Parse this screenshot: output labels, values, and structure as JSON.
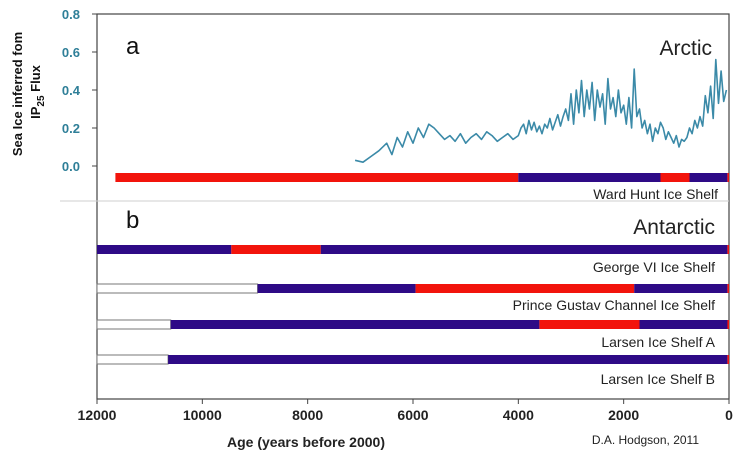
{
  "chart_data": {
    "type": "timeline",
    "x_axis": {
      "label": "Age (years before 2000)",
      "range": [
        12000,
        0
      ],
      "reversed": true,
      "ticks": [
        12000,
        10000,
        8000,
        6000,
        4000,
        2000,
        0
      ],
      "tick_labels": [
        "12000",
        "10000",
        "8000",
        "6000",
        "4000",
        "2000",
        "0"
      ]
    },
    "panels": {
      "a": {
        "letter": "a",
        "region": "Arctic",
        "y_axis": {
          "label_line1": "Sea Ice inferred fom",
          "label_line2_prefix": "IP",
          "label_line2_sub": "25",
          "label_line2_suffix": " Flux",
          "range": [
            -0.05,
            0.8
          ],
          "ticks": [
            0.0,
            0.2,
            0.4,
            0.6,
            0.8
          ],
          "tick_labels": [
            "0.0",
            "0.2",
            "0.4",
            "0.6",
            "0.8"
          ]
        },
        "series": [
          {
            "type": "line",
            "color": "#3b8aa8",
            "x": [
              7100,
              6950,
              6800,
              6650,
              6500,
              6400,
              6300,
              6200,
              6100,
              6000,
              5900,
              5800,
              5700,
              5600,
              5500,
              5400,
              5300,
              5200,
              5100,
              5000,
              4900,
              4800,
              4700,
              4600,
              4500,
              4400,
              4300,
              4200,
              4100,
              4000,
              3950,
              3900,
              3850,
              3800,
              3750,
              3700,
              3650,
              3600,
              3550,
              3500,
              3450,
              3400,
              3350,
              3300,
              3250,
              3200,
              3150,
              3100,
              3050,
              3000,
              2950,
              2900,
              2850,
              2800,
              2750,
              2700,
              2650,
              2600,
              2550,
              2500,
              2450,
              2400,
              2350,
              2300,
              2250,
              2200,
              2150,
              2100,
              2050,
              2000,
              1950,
              1900,
              1850,
              1800,
              1750,
              1700,
              1650,
              1600,
              1550,
              1500,
              1450,
              1400,
              1350,
              1300,
              1250,
              1200,
              1150,
              1100,
              1050,
              1000,
              950,
              900,
              850,
              800,
              750,
              700,
              650,
              600,
              550,
              500,
              450,
              400,
              350,
              300,
              250,
              200,
              150,
              100,
              50
            ],
            "y": [
              0.03,
              0.02,
              0.05,
              0.08,
              0.12,
              0.06,
              0.15,
              0.1,
              0.18,
              0.12,
              0.2,
              0.15,
              0.22,
              0.2,
              0.17,
              0.14,
              0.16,
              0.13,
              0.17,
              0.12,
              0.15,
              0.17,
              0.14,
              0.18,
              0.16,
              0.13,
              0.15,
              0.17,
              0.14,
              0.16,
              0.2,
              0.22,
              0.17,
              0.24,
              0.19,
              0.23,
              0.18,
              0.21,
              0.17,
              0.22,
              0.2,
              0.25,
              0.19,
              0.23,
              0.27,
              0.21,
              0.26,
              0.3,
              0.24,
              0.38,
              0.22,
              0.4,
              0.28,
              0.45,
              0.26,
              0.4,
              0.3,
              0.44,
              0.24,
              0.4,
              0.31,
              0.38,
              0.22,
              0.46,
              0.3,
              0.36,
              0.26,
              0.4,
              0.28,
              0.32,
              0.22,
              0.36,
              0.2,
              0.51,
              0.26,
              0.3,
              0.2,
              0.24,
              0.17,
              0.22,
              0.13,
              0.2,
              0.17,
              0.23,
              0.2,
              0.14,
              0.18,
              0.15,
              0.12,
              0.16,
              0.1,
              0.14,
              0.13,
              0.15,
              0.2,
              0.17,
              0.24,
              0.2,
              0.26,
              0.21,
              0.37,
              0.28,
              0.42,
              0.25,
              0.56,
              0.33,
              0.5,
              0.34,
              0.4
            ]
          }
        ],
        "shelves": [
          {
            "name": "Ward Hunt Ice Shelf",
            "segments": [
              {
                "from": 11650,
                "to": 4000,
                "state": "open"
              },
              {
                "from": 4000,
                "to": 1300,
                "state": "present"
              },
              {
                "from": 1300,
                "to": 750,
                "state": "open"
              },
              {
                "from": 750,
                "to": 30,
                "state": "present"
              },
              {
                "from": 30,
                "to": 0,
                "state": "open"
              }
            ]
          }
        ]
      },
      "b": {
        "letter": "b",
        "region": "Antarctic",
        "shelves": [
          {
            "name": "George VI Ice Shelf",
            "segments": [
              {
                "from": 12000,
                "to": 9450,
                "state": "present"
              },
              {
                "from": 9450,
                "to": 7750,
                "state": "open"
              },
              {
                "from": 7750,
                "to": 30,
                "state": "present"
              },
              {
                "from": 30,
                "to": 0,
                "state": "open"
              }
            ]
          },
          {
            "name": "Prince Gustav Channel Ice Shelf",
            "segments": [
              {
                "from": 12000,
                "to": 8950,
                "state": "unknown"
              },
              {
                "from": 8950,
                "to": 5950,
                "state": "present"
              },
              {
                "from": 5950,
                "to": 1800,
                "state": "open"
              },
              {
                "from": 1800,
                "to": 30,
                "state": "present"
              },
              {
                "from": 30,
                "to": 0,
                "state": "open"
              }
            ]
          },
          {
            "name": "Larsen Ice Shelf A",
            "segments": [
              {
                "from": 12000,
                "to": 10600,
                "state": "unknown"
              },
              {
                "from": 10600,
                "to": 3600,
                "state": "present"
              },
              {
                "from": 3600,
                "to": 1700,
                "state": "open"
              },
              {
                "from": 1700,
                "to": 30,
                "state": "present"
              },
              {
                "from": 30,
                "to": 0,
                "state": "open"
              }
            ]
          },
          {
            "name": "Larsen Ice Shelf B",
            "segments": [
              {
                "from": 12000,
                "to": 10650,
                "state": "unknown"
              },
              {
                "from": 10650,
                "to": 30,
                "state": "present"
              },
              {
                "from": 30,
                "to": 0,
                "state": "open"
              }
            ]
          }
        ]
      }
    },
    "colors": {
      "present": "#2e0a86",
      "open": "#f2140c",
      "unknown": "#ffffff",
      "line": "#3b8aa8",
      "axis_tick_a": "#2f7f98"
    },
    "grid": false
  },
  "credit": "D.A. Hodgson, 2011"
}
